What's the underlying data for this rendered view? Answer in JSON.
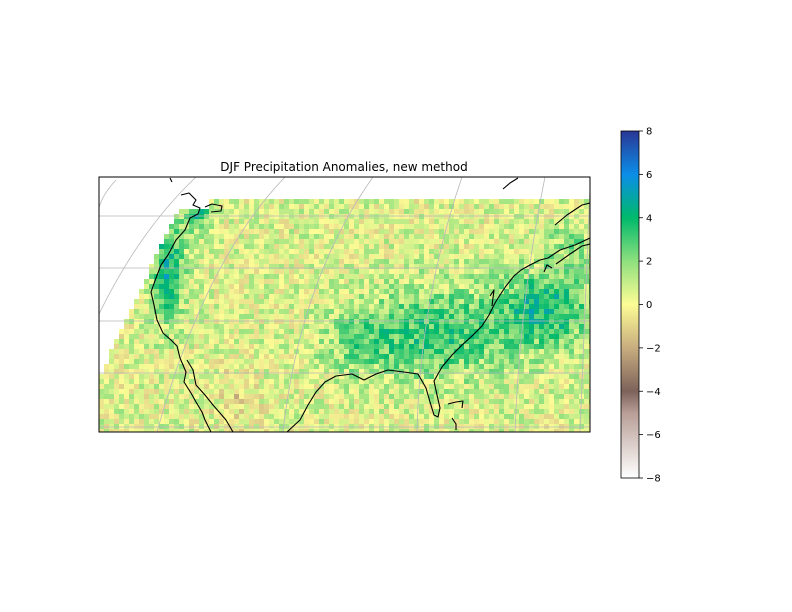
{
  "chart_data": {
    "type": "heatmap",
    "title": "DJF Precipitation Anomalies, new method",
    "colorbar": {
      "min": -8,
      "max": 8,
      "ticks": [
        8,
        6,
        4,
        2,
        0,
        -2,
        -4,
        -6,
        -8
      ],
      "tick_labels": [
        "8",
        "6",
        "4",
        "2",
        "0",
        "−2",
        "−4",
        "−6",
        "−8"
      ],
      "colormap_stops": [
        {
          "value": -8,
          "color": "#ffffff"
        },
        {
          "value": -5,
          "color": "#b89e96"
        },
        {
          "value": -4,
          "color": "#7d625b"
        },
        {
          "value": -2,
          "color": "#c8ad7f"
        },
        {
          "value": 0,
          "color": "#fdfc95"
        },
        {
          "value": 2,
          "color": "#8ee07e"
        },
        {
          "value": 4,
          "color": "#00b96b"
        },
        {
          "value": 6,
          "color": "#0b8ee8"
        },
        {
          "value": 8,
          "color": "#2a3695"
        }
      ]
    },
    "map": {
      "region": "Contiguous United States",
      "projection": "conic",
      "gridlines": true,
      "coastlines": true
    }
  }
}
